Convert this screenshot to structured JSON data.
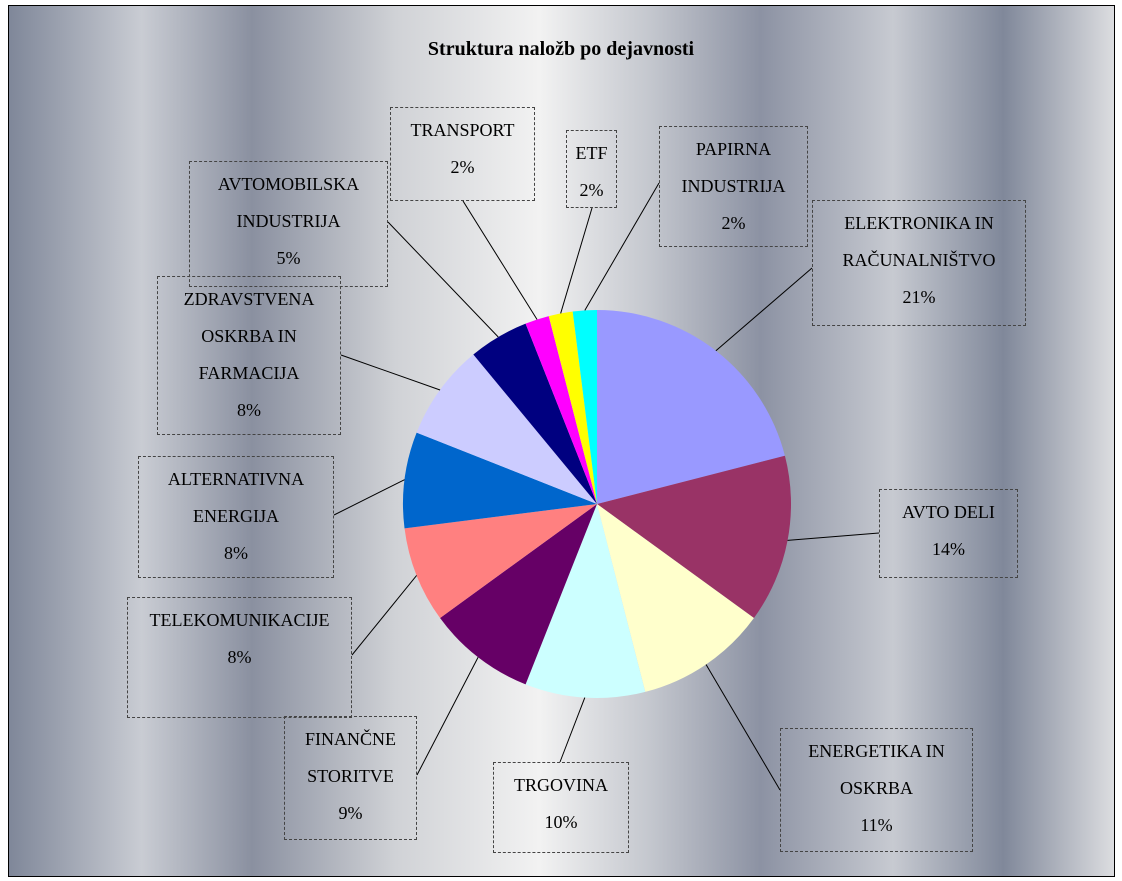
{
  "chart_data": {
    "type": "pie",
    "title": "Struktura naložb po dejavnosti",
    "categories": [
      "ELEKTRONIKA IN RAČUNALNIŠTVO",
      "AVTO DELI",
      "ENERGETIKA IN OSKRBA",
      "TRGOVINA",
      "FINANČNE STORITVE",
      "TELEKOMUNIKACIJE",
      "ALTERNATIVNA ENERGIJA",
      "ZDRAVSTVENA OSKRBA IN FARMACIJA",
      "AVTOMOBILSKA INDUSTRIJA",
      "TRANSPORT",
      "ETF",
      "PAPIRNA INDUSTRIJA"
    ],
    "values": [
      21,
      14,
      11,
      10,
      9,
      8,
      8,
      8,
      5,
      2,
      2,
      2
    ],
    "value_labels": [
      "21%",
      "14%",
      "11%",
      "10%",
      "9%",
      "8%",
      "8%",
      "8%",
      "5%",
      "2%",
      "2%",
      "2%"
    ],
    "colors": [
      "#9999ff",
      "#993366",
      "#ffffcc",
      "#ccffff",
      "#660066",
      "#ff8080",
      "#0066cc",
      "#ccccff",
      "#000080",
      "#ff00ff",
      "#ffff00",
      "#00ffff"
    ]
  }
}
